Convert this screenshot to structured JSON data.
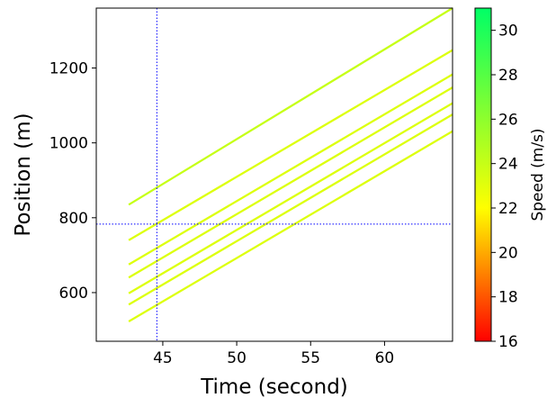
{
  "chart_data": {
    "type": "line",
    "title": "",
    "xlabel": "Time (second)",
    "ylabel": "Position (m)",
    "xlim": [
      40.5,
      64.6
    ],
    "ylim": [
      470,
      1360
    ],
    "xticks": [
      45,
      50,
      55,
      60
    ],
    "yticks": [
      600,
      800,
      1000,
      1200
    ],
    "grid": false,
    "series": [
      {
        "x": [
          42.7,
          64.6
        ],
        "y": [
          835,
          1360
        ],
        "speed": 24.0
      },
      {
        "x": [
          42.7,
          64.6
        ],
        "y": [
          740,
          1248
        ],
        "speed": 23.2
      },
      {
        "x": [
          42.7,
          64.6
        ],
        "y": [
          675,
          1183
        ],
        "speed": 23.2
      },
      {
        "x": [
          42.7,
          64.6
        ],
        "y": [
          640,
          1148
        ],
        "speed": 23.2
      },
      {
        "x": [
          42.7,
          64.6
        ],
        "y": [
          598,
          1106
        ],
        "speed": 23.2
      },
      {
        "x": [
          42.7,
          64.6
        ],
        "y": [
          568,
          1076
        ],
        "speed": 23.2
      },
      {
        "x": [
          42.7,
          64.6
        ],
        "y": [
          523,
          1031
        ],
        "speed": 23.2
      }
    ],
    "reference_lines": {
      "vertical_x": 44.6,
      "horizontal_y": 783,
      "color": "#0000ff",
      "style": "dotted"
    },
    "colorbar": {
      "label": "Speed (m/s)",
      "range": [
        16,
        31
      ],
      "ticks": [
        16,
        18,
        20,
        22,
        24,
        26,
        28,
        30
      ],
      "colors": [
        "#ff0000",
        "#ffff00",
        "#00ff66"
      ]
    }
  }
}
